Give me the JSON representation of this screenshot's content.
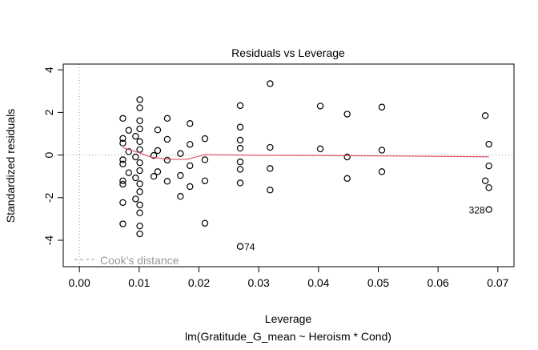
{
  "chart_data": {
    "type": "scatter",
    "title": "Residuals vs Leverage",
    "xlabel": "Leverage",
    "sublabel": "lm(Gratitude_G_mean ~ Heroism * Cond)",
    "ylabel": "Standardized residuals",
    "xlim": [
      -0.0027,
      0.0727
    ],
    "ylim": [
      -5.24,
      4.27
    ],
    "xticks": [
      0.0,
      0.01,
      0.02,
      0.03,
      0.04,
      0.05,
      0.06,
      0.07
    ],
    "xtick_labels": [
      "0.00",
      "0.01",
      "0.02",
      "0.03",
      "0.04",
      "0.05",
      "0.06",
      "0.07"
    ],
    "yticks": [
      -4,
      -2,
      0,
      2,
      4
    ],
    "ytick_labels": [
      "-4",
      "-2",
      "0",
      "2",
      "4"
    ],
    "grid": false,
    "legend": {
      "label": "Cook's distance",
      "placement": "bottom-left"
    },
    "colors": {
      "points": "#000000",
      "smooth": "#DF536B",
      "reference": "#999999"
    },
    "points": [
      [
        0.00727,
        1.72
      ],
      [
        0.00727,
        0.78
      ],
      [
        0.00727,
        0.56
      ],
      [
        0.00727,
        -0.22
      ],
      [
        0.00727,
        -0.42
      ],
      [
        0.00727,
        -1.21
      ],
      [
        0.00727,
        -1.37
      ],
      [
        0.00727,
        -2.23
      ],
      [
        0.00727,
        -3.23
      ],
      [
        0.00826,
        1.16
      ],
      [
        0.00826,
        0.16
      ],
      [
        0.00826,
        -0.83
      ],
      [
        0.0094,
        0.88
      ],
      [
        0.0094,
        -0.09
      ],
      [
        0.0094,
        -1.07
      ],
      [
        0.0094,
        -2.06
      ],
      [
        0.0101,
        2.6
      ],
      [
        0.0101,
        2.22
      ],
      [
        0.0101,
        1.61
      ],
      [
        0.0101,
        1.23
      ],
      [
        0.0101,
        0.63
      ],
      [
        0.0101,
        0.26
      ],
      [
        0.0101,
        -0.36
      ],
      [
        0.0101,
        -0.73
      ],
      [
        0.0101,
        -1.35
      ],
      [
        0.0101,
        -1.72
      ],
      [
        0.0101,
        -2.34
      ],
      [
        0.0101,
        -2.71
      ],
      [
        0.0101,
        -3.33
      ],
      [
        0.0101,
        -3.7
      ],
      [
        0.0131,
        1.18
      ],
      [
        0.0131,
        0.21
      ],
      [
        0.0131,
        -0.78
      ],
      [
        0.01245,
        -0.02
      ],
      [
        0.01245,
        -1.0
      ],
      [
        0.0147,
        1.72
      ],
      [
        0.0147,
        0.74
      ],
      [
        0.0147,
        -0.24
      ],
      [
        0.0147,
        -1.23
      ],
      [
        0.0169,
        0.07
      ],
      [
        0.0169,
        -0.96
      ],
      [
        0.0169,
        -1.94
      ],
      [
        0.0185,
        1.48
      ],
      [
        0.0185,
        0.5
      ],
      [
        0.0185,
        -0.5
      ],
      [
        0.0185,
        -1.48
      ],
      [
        0.021,
        0.77
      ],
      [
        0.021,
        -0.22
      ],
      [
        0.021,
        -1.21
      ],
      [
        0.021,
        -3.2
      ],
      [
        0.0269,
        2.32
      ],
      [
        0.0269,
        1.31
      ],
      [
        0.0269,
        0.7
      ],
      [
        0.0269,
        0.32
      ],
      [
        0.0269,
        -0.32
      ],
      [
        0.0269,
        -0.67
      ],
      [
        0.0269,
        -1.31
      ],
      [
        0.0269,
        -4.29
      ],
      [
        0.0319,
        3.35
      ],
      [
        0.0319,
        0.36
      ],
      [
        0.0319,
        -0.63
      ],
      [
        0.0319,
        -1.64
      ],
      [
        0.0403,
        2.3
      ],
      [
        0.0403,
        0.29
      ],
      [
        0.0448,
        1.92
      ],
      [
        0.0448,
        -0.09
      ],
      [
        0.0448,
        -1.1
      ],
      [
        0.0506,
        2.25
      ],
      [
        0.0506,
        0.23
      ],
      [
        0.0506,
        -0.78
      ],
      [
        0.0679,
        1.85
      ],
      [
        0.0679,
        -1.21
      ],
      [
        0.0685,
        0.51
      ],
      [
        0.0685,
        -0.51
      ],
      [
        0.0685,
        -1.53
      ],
      [
        0.0685,
        -2.56
      ]
    ],
    "point_labels": [
      {
        "x": 0.0269,
        "y": -4.29,
        "label": "74"
      },
      {
        "x": 0.0685,
        "y": -2.56,
        "label": "328"
      }
    ],
    "smooth_line": [
      [
        0.00727,
        0.35
      ],
      [
        0.0101,
        0.1
      ],
      [
        0.012,
        -0.1
      ],
      [
        0.015,
        -0.2
      ],
      [
        0.018,
        -0.2
      ],
      [
        0.021,
        0.02
      ],
      [
        0.027,
        0.0
      ],
      [
        0.032,
        -0.01
      ],
      [
        0.045,
        -0.03
      ],
      [
        0.0685,
        -0.08
      ]
    ]
  }
}
